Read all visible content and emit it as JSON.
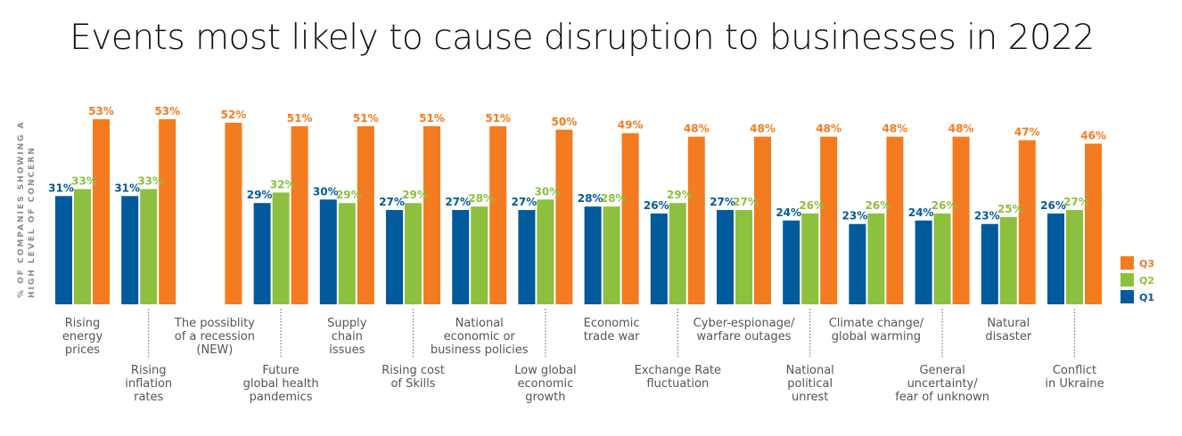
{
  "chart_data": {
    "type": "bar",
    "title": "Events most likely to cause disruption to businesses in 2022",
    "xlabel": "",
    "ylabel": "% OF COMPANIES SHOWING A HIGH LEVEL OF CONCERN",
    "ylabel_lines": [
      "% OF COMPANIES SHOWING A",
      "HIGH LEVEL OF CONCERN"
    ],
    "ylim": [
      0,
      60
    ],
    "grid": false,
    "legend_position": "right",
    "categories": [
      "Rising energy prices",
      "Rising inflation rates",
      "The possiblity of a recession (NEW)",
      "Future global health pandemics",
      "Supply chain issues",
      "Rising cost of Skills",
      "National economic or business policies",
      "Low global economic growth",
      "Economic trade war",
      "Exchange Rate fluctuation",
      "Cyber-espionage/ warfare outages",
      "National political unrest",
      "Climate change/ global warming",
      "General uncertainty/ fear of unknown",
      "Natural disaster",
      "Conflict in Ukraine"
    ],
    "category_label_lines": [
      [
        "Rising",
        "energy",
        "prices"
      ],
      [
        "Rising",
        "inflation",
        "rates"
      ],
      [
        "The possiblity",
        "of a recession",
        "(NEW)"
      ],
      [
        "Future",
        "global health",
        "pandemics"
      ],
      [
        "Supply",
        "chain",
        "issues"
      ],
      [
        "Rising cost",
        "of Skills"
      ],
      [
        "National",
        "economic or",
        "business policies"
      ],
      [
        "Low global",
        "economic",
        "growth"
      ],
      [
        "Economic",
        "trade war"
      ],
      [
        "Exchange Rate",
        "fluctuation"
      ],
      [
        "Cyber-espionage/",
        "warfare outages"
      ],
      [
        "National",
        "political",
        "unrest"
      ],
      [
        "Climate change/",
        "global warming"
      ],
      [
        "General",
        "uncertainty/",
        "fear of unknown"
      ],
      [
        "Natural",
        "disaster"
      ],
      [
        "Conflict",
        "in Ukraine"
      ]
    ],
    "series": [
      {
        "name": "Q1",
        "color": "#005A9C",
        "values": [
          31,
          31,
          null,
          29,
          30,
          27,
          27,
          27,
          28,
          26,
          27,
          24,
          23,
          24,
          23,
          26
        ]
      },
      {
        "name": "Q2",
        "color": "#8DC03F",
        "values": [
          33,
          33,
          null,
          32,
          29,
          29,
          28,
          30,
          28,
          29,
          27,
          26,
          26,
          26,
          25,
          27
        ]
      },
      {
        "name": "Q3",
        "color": "#F47B20",
        "values": [
          53,
          53,
          52,
          51,
          51,
          51,
          51,
          50,
          49,
          48,
          48,
          48,
          48,
          48,
          47,
          46
        ]
      }
    ],
    "legend": [
      {
        "label": "Q3",
        "color": "#F47B20"
      },
      {
        "label": "Q2",
        "color": "#8DC03F"
      },
      {
        "label": "Q1",
        "color": "#005A9C"
      }
    ],
    "value_suffix": "%"
  }
}
